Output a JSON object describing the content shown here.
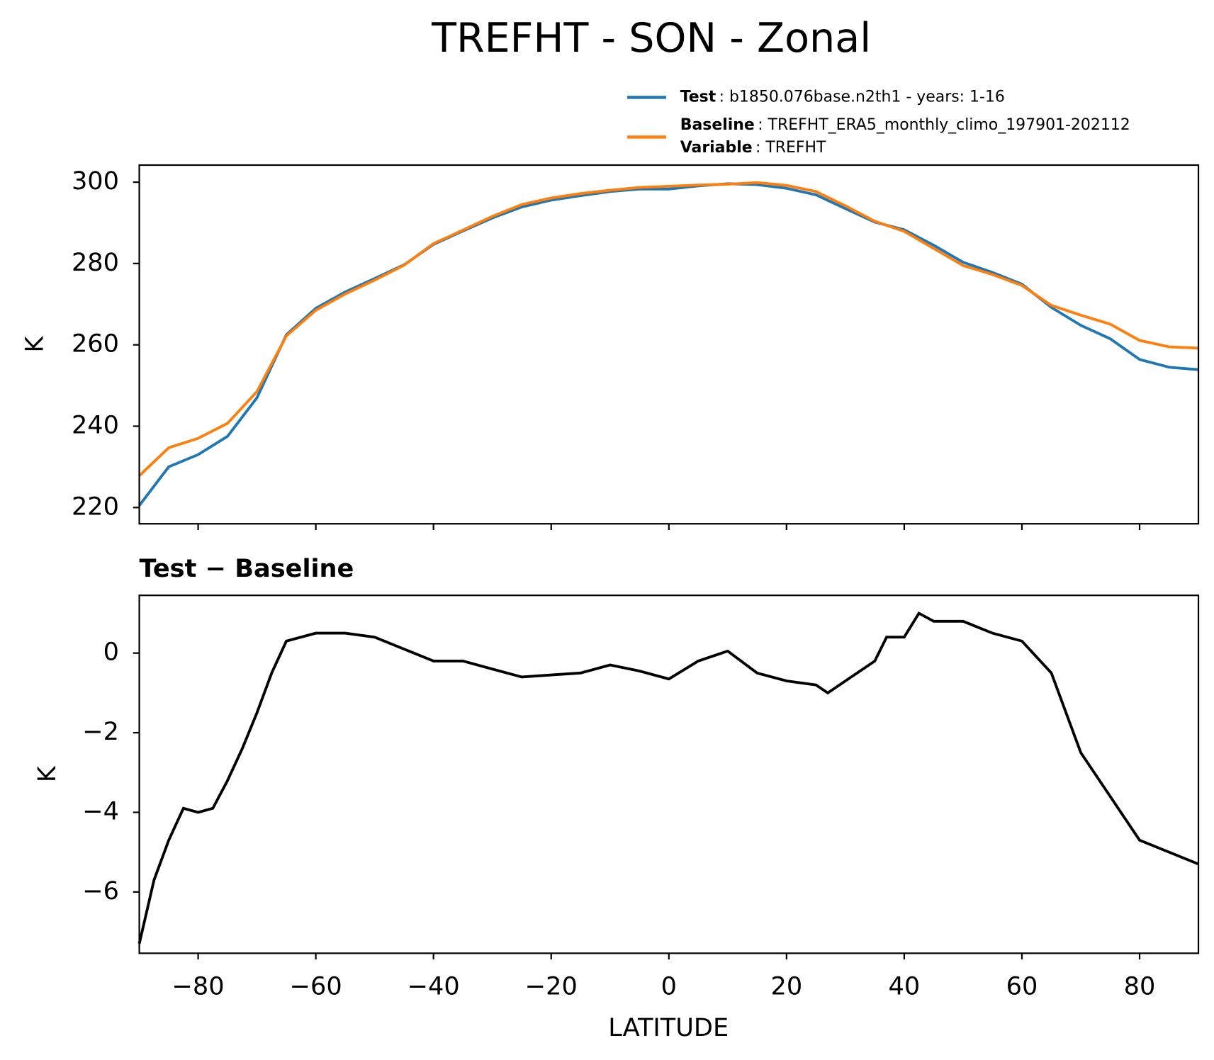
{
  "chart_data": [
    {
      "type": "line",
      "title": "TREFHT - SON - Zonal",
      "ylabel": "K",
      "x": [
        -90,
        -85,
        -80,
        -75,
        -70,
        -65,
        -60,
        -55,
        -50,
        -45,
        -40,
        -35,
        -30,
        -25,
        -20,
        -15,
        -10,
        -5,
        0,
        5,
        10,
        15,
        20,
        25,
        30,
        35,
        40,
        45,
        50,
        55,
        60,
        65,
        70,
        75,
        80,
        85,
        90
      ],
      "series": [
        {
          "name": "Test",
          "detail": ": b1850.076base.n2th1 - years: 1-16",
          "color": "#1f77b4",
          "values": [
            220.5,
            230,
            233,
            237.5,
            247,
            262.5,
            269,
            273,
            276.3,
            279.7,
            284.7,
            288,
            291.2,
            293.9,
            295.6,
            296.7,
            297.7,
            298.3,
            298.3,
            299.1,
            299.6,
            299.4,
            298.5,
            296.9,
            293.5,
            290.2,
            288.3,
            284.5,
            280.3,
            277.8,
            274.9,
            269.2,
            264.8,
            261.5,
            256.4,
            254.5,
            253.9
          ]
        },
        {
          "name": "Baseline",
          "detail": ": TREFHT_ERA5_monthly_climo_197901-202112",
          "color": "#ff7f0e",
          "values": [
            227.8,
            234.7,
            237,
            240.7,
            248.5,
            262.2,
            268.5,
            272.5,
            275.9,
            279.6,
            284.9,
            288.2,
            291.6,
            294.5,
            296.1,
            297.2,
            298,
            298.7,
            299,
            299.3,
            299.5,
            299.9,
            299.2,
            297.7,
            294.2,
            290.4,
            287.9,
            283.7,
            279.5,
            277.3,
            274.6,
            269.7,
            267.3,
            265.1,
            261.1,
            259.5,
            259.2
          ]
        }
      ],
      "legend_extra": {
        "name": "Variable",
        "detail": ": TREFHT"
      },
      "xlim": [
        -90,
        90
      ],
      "xticks": [
        -80,
        -60,
        -40,
        -20,
        0,
        20,
        40,
        60,
        80
      ],
      "ylim": [
        216,
        304.2
      ],
      "yticks": [
        220,
        240,
        260,
        280,
        300
      ]
    },
    {
      "type": "line",
      "subtitle": "Test − Baseline",
      "ylabel": "K",
      "xlabel": "LATITUDE",
      "x": [
        -90,
        -87.5,
        -85,
        -82.5,
        -80,
        -77.5,
        -75,
        -72.5,
        -70,
        -67.5,
        -65,
        -60,
        -55,
        -50,
        -45,
        -40,
        -35,
        -30,
        -25,
        -20,
        -15,
        -10,
        -5,
        0,
        5,
        10,
        15,
        20,
        25,
        27,
        30,
        35,
        37,
        40,
        42.5,
        45,
        50,
        55,
        60,
        65,
        70,
        75,
        80,
        85,
        90
      ],
      "series": [
        {
          "name": "Test − Baseline",
          "color": "#000000",
          "values": [
            -7.3,
            -5.7,
            -4.7,
            -3.9,
            -4.0,
            -3.9,
            -3.2,
            -2.4,
            -1.5,
            -0.5,
            0.3,
            0.5,
            0.5,
            0.4,
            0.1,
            -0.2,
            -0.2,
            -0.4,
            -0.6,
            -0.55,
            -0.5,
            -0.3,
            -0.45,
            -0.65,
            -0.2,
            0.05,
            -0.5,
            -0.7,
            -0.8,
            -1.0,
            -0.7,
            -0.2,
            0.4,
            0.4,
            1.0,
            0.8,
            0.8,
            0.5,
            0.3,
            -0.5,
            -2.5,
            -3.6,
            -4.7,
            -5.0,
            -5.3
          ]
        }
      ],
      "xlim": [
        -90,
        90
      ],
      "xticks": [
        {
          "value": -80,
          "label": "−80"
        },
        {
          "value": -60,
          "label": "−60"
        },
        {
          "value": -40,
          "label": "−40"
        },
        {
          "value": -20,
          "label": "−20"
        },
        0,
        20,
        40,
        60,
        80
      ],
      "ylim": [
        -7.54,
        1.45
      ],
      "yticks": [
        {
          "value": -6,
          "label": "−6"
        },
        {
          "value": -4,
          "label": "−4"
        },
        {
          "value": -2,
          "label": "−2"
        },
        0
      ]
    }
  ]
}
